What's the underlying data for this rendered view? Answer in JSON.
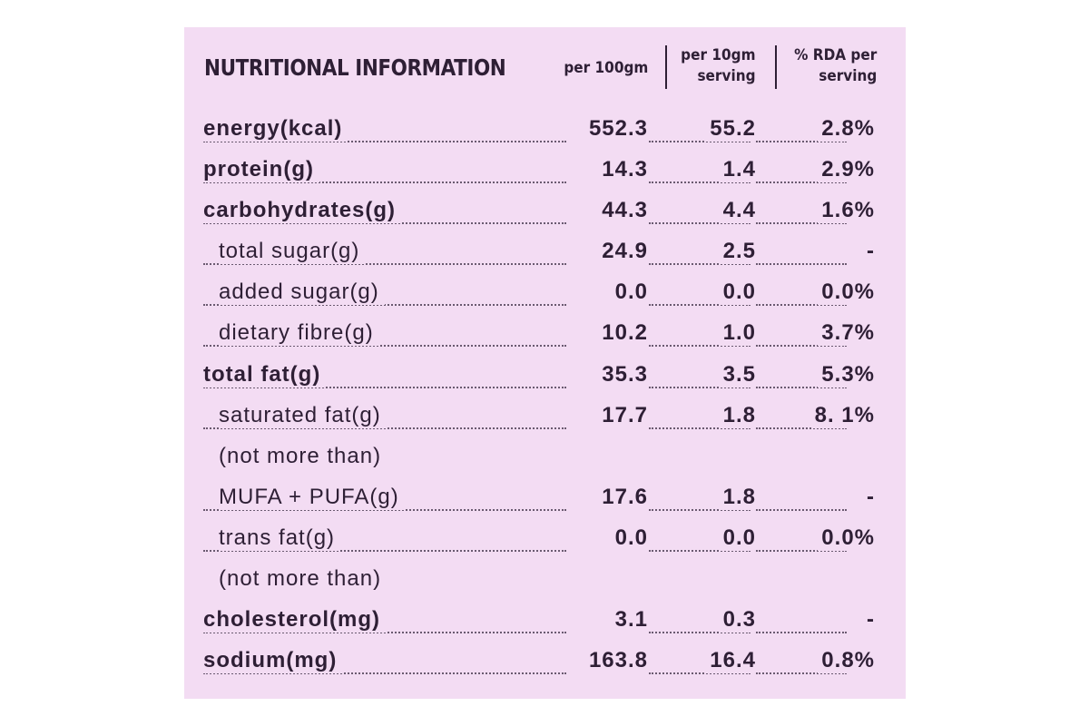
{
  "panel": {
    "title": "NUTRITIONAL INFORMATION",
    "background_color": "#f3dcf3",
    "text_color": "#2e1f35"
  },
  "columns": {
    "per_100gm": "per 100gm",
    "per_serving_line1": "per 10gm",
    "per_serving_line2": "serving",
    "rda_line1": "% RDA per",
    "rda_line2": "serving"
  },
  "rows": [
    {
      "label": "energy(kcal)",
      "per_100gm": "552.3",
      "per_serving": "55.2",
      "rda": "2.8%"
    },
    {
      "label": "protein(g)",
      "per_100gm": "14.3",
      "per_serving": "1.4",
      "rda": "2.9%"
    },
    {
      "label": "carbohydrates(g)",
      "per_100gm": "44.3",
      "per_serving": "4.4",
      "rda": "1.6%"
    },
    {
      "label": "total sugar(g)",
      "per_100gm": "24.9",
      "per_serving": "2.5",
      "rda": "-"
    },
    {
      "label": "added sugar(g)",
      "per_100gm": "0.0",
      "per_serving": "0.0",
      "rda": "0.0%"
    },
    {
      "label": "dietary fibre(g)",
      "per_100gm": "10.2",
      "per_serving": "1.0",
      "rda": "3.7%"
    },
    {
      "label": "total fat(g)",
      "per_100gm": "35.3",
      "per_serving": "3.5",
      "rda": "5.3%"
    },
    {
      "label": "saturated fat(g)",
      "per_100gm": "17.7",
      "per_serving": "1.8",
      "rda": "8. 1%"
    },
    {
      "label": "(not more than)"
    },
    {
      "label": "MUFA + PUFA(g)",
      "per_100gm": "17.6",
      "per_serving": "1.8",
      "rda": "-"
    },
    {
      "label": "trans fat(g)",
      "per_100gm": "0.0",
      "per_serving": "0.0",
      "rda": "0.0%"
    },
    {
      "label": "(not more than)"
    },
    {
      "label": "cholesterol(mg)",
      "per_100gm": "3.1",
      "per_serving": "0.3",
      "rda": "-"
    },
    {
      "label": "sodium(mg)",
      "per_100gm": "163.8",
      "per_serving": "16.4",
      "rda": "0.8%"
    }
  ]
}
